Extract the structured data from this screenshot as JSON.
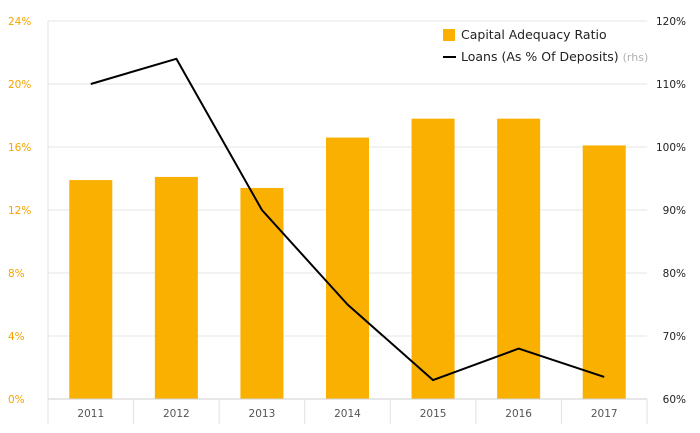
{
  "chart_data": {
    "type": "bar",
    "categories": [
      "2011",
      "2012",
      "2013",
      "2014",
      "2015",
      "2016",
      "2017"
    ],
    "series": [
      {
        "name": "Capital Adequacy Ratio",
        "type": "bar",
        "axis": "left",
        "color": "#f9b000",
        "values": [
          13.9,
          14.1,
          13.4,
          16.6,
          17.8,
          17.8,
          16.1
        ]
      },
      {
        "name": "Loans (As % Of Deposits)",
        "name_suffix": "(rhs)",
        "type": "line",
        "axis": "right",
        "color": "#000000",
        "values": [
          110,
          114,
          90,
          75,
          63,
          68,
          63.5
        ]
      }
    ],
    "y_left": {
      "ticks": [
        "0%",
        "4%",
        "8%",
        "12%",
        "16%",
        "20%",
        "24%"
      ],
      "tick_values": [
        0,
        4,
        8,
        12,
        16,
        20,
        24
      ],
      "ylim": [
        0,
        24
      ],
      "color": "#f5a400"
    },
    "y_right": {
      "ticks": [
        "60%",
        "70%",
        "80%",
        "90%",
        "100%",
        "110%",
        "120%"
      ],
      "tick_values": [
        60,
        70,
        80,
        90,
        100,
        110,
        120
      ],
      "ylim": [
        60,
        120
      ]
    },
    "title": "",
    "xlabel": "",
    "ylabel": "",
    "grid": true,
    "legend_position": "top-right"
  }
}
